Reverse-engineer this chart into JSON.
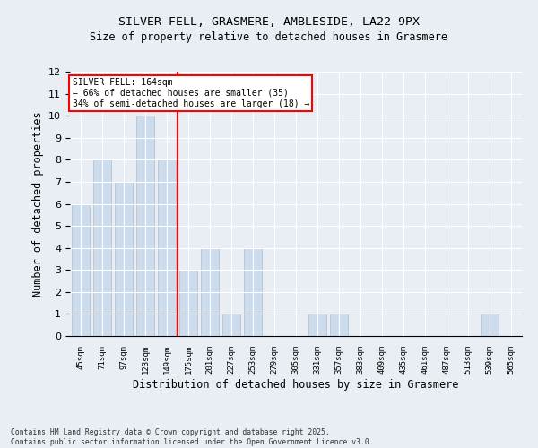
{
  "title_line1": "SILVER FELL, GRASMERE, AMBLESIDE, LA22 9PX",
  "title_line2": "Size of property relative to detached houses in Grasmere",
  "xlabel": "Distribution of detached houses by size in Grasmere",
  "ylabel": "Number of detached properties",
  "categories": [
    "45sqm",
    "71sqm",
    "97sqm",
    "123sqm",
    "149sqm",
    "175sqm",
    "201sqm",
    "227sqm",
    "253sqm",
    "279sqm",
    "305sqm",
    "331sqm",
    "357sqm",
    "383sqm",
    "409sqm",
    "435sqm",
    "461sqm",
    "487sqm",
    "513sqm",
    "539sqm",
    "565sqm"
  ],
  "values": [
    6,
    8,
    7,
    10,
    8,
    3,
    4,
    1,
    4,
    0,
    0,
    1,
    1,
    0,
    0,
    0,
    0,
    0,
    0,
    1,
    0
  ],
  "bar_color": "#ccdcec",
  "bar_edge_color": "#aabccc",
  "red_line_x": 4.5,
  "annotation_title": "SILVER FELL: 164sqm",
  "annotation_line2": "← 66% of detached houses are smaller (35)",
  "annotation_line3": "34% of semi-detached houses are larger (18) →",
  "ylim": [
    0,
    12
  ],
  "yticks": [
    0,
    1,
    2,
    3,
    4,
    5,
    6,
    7,
    8,
    9,
    10,
    11,
    12
  ],
  "background_color": "#e8eef4",
  "grid_color": "#ffffff",
  "footer_line1": "Contains HM Land Registry data © Crown copyright and database right 2025.",
  "footer_line2": "Contains public sector information licensed under the Open Government Licence v3.0."
}
